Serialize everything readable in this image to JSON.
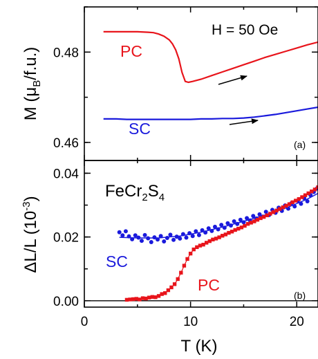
{
  "chart_data": [
    {
      "id": "a",
      "type": "line",
      "panel_tag": "(a)",
      "ylabel_main": "M (μ",
      "ylabel_sub": "B",
      "ylabel_tail": "/f.u.)",
      "xlim": [
        0,
        22
      ],
      "ylim": [
        0.456,
        0.49
      ],
      "yticks": [
        0.46,
        0.48
      ],
      "ytick_labels": [
        "0.46",
        "0.48"
      ],
      "annotation": "H = 50 Oe",
      "series": [
        {
          "name": "PC",
          "color": "#e8141b",
          "x": [
            1.8,
            3,
            4,
            5,
            6,
            6.5,
            7,
            7.5,
            8,
            8.3,
            8.6,
            8.9,
            9.2,
            9.5,
            9.8,
            10.2,
            11,
            12,
            13,
            14,
            15,
            16,
            17,
            18,
            19,
            20,
            21,
            22
          ],
          "y": [
            0.4845,
            0.4845,
            0.4845,
            0.4845,
            0.4844,
            0.4843,
            0.484,
            0.4835,
            0.4827,
            0.4818,
            0.4805,
            0.4785,
            0.4755,
            0.4735,
            0.4733,
            0.4735,
            0.474,
            0.4748,
            0.4756,
            0.4764,
            0.4772,
            0.478,
            0.4788,
            0.4795,
            0.4802,
            0.4809,
            0.4816,
            0.4822
          ]
        },
        {
          "name": "SC",
          "color": "#1a1adc",
          "x": [
            1.8,
            3,
            4,
            5,
            6,
            7,
            8,
            9,
            10,
            11,
            12,
            13,
            14,
            15,
            16,
            17,
            18,
            19,
            20,
            21,
            22
          ],
          "y": [
            0.4652,
            0.4652,
            0.4651,
            0.4651,
            0.4651,
            0.4651,
            0.4651,
            0.4651,
            0.4651,
            0.4652,
            0.4652,
            0.4653,
            0.4653,
            0.4654,
            0.4656,
            0.4659,
            0.4662,
            0.4666,
            0.467,
            0.4674,
            0.4678
          ]
        }
      ]
    },
    {
      "id": "b",
      "type": "scatter",
      "panel_tag": "(b)",
      "ylabel_main": "ΔL/L (10",
      "ylabel_sup": "-3",
      "ylabel_tail": ")",
      "xlabel": "T (K)",
      "xlim": [
        0,
        22
      ],
      "ylim": [
        -0.002,
        0.044
      ],
      "xticks": [
        0,
        10,
        20
      ],
      "xtick_labels": [
        "0",
        "10",
        "20"
      ],
      "yticks": [
        0,
        0.02,
        0.04
      ],
      "ytick_labels": [
        "0.00",
        "0.02",
        "0.04"
      ],
      "compound_main": "FeCr",
      "compound_sub1": "2",
      "compound_mid": "S",
      "compound_sub2": "4",
      "series": [
        {
          "name": "SC",
          "color": "#1a1adc",
          "marker": "circle",
          "x": [
            3.3,
            3.6,
            3.9,
            4.2,
            4.5,
            4.8,
            5.1,
            5.4,
            5.7,
            6.0,
            6.3,
            6.6,
            6.9,
            7.2,
            7.5,
            7.8,
            8.1,
            8.4,
            8.7,
            9.0,
            9.3,
            9.6,
            9.9,
            10.2,
            10.5,
            10.8,
            11.1,
            11.4,
            11.7,
            12.0,
            12.3,
            12.6,
            12.9,
            13.2,
            13.5,
            13.8,
            14.1,
            14.4,
            14.7,
            15.0,
            15.3,
            15.6,
            15.9,
            16.2,
            16.5,
            16.8,
            17.1,
            17.4,
            17.7,
            18.0,
            18.3,
            18.6,
            18.9,
            19.2,
            19.5,
            19.8,
            20.1,
            20.4,
            20.7,
            21.0,
            21.3,
            21.6,
            21.9
          ],
          "y": [
            0.0215,
            0.0205,
            0.0218,
            0.0202,
            0.0193,
            0.0205,
            0.0198,
            0.0188,
            0.0206,
            0.0196,
            0.0184,
            0.0199,
            0.0192,
            0.0203,
            0.0186,
            0.0197,
            0.0207,
            0.0191,
            0.0201,
            0.0195,
            0.0209,
            0.0198,
            0.0212,
            0.0203,
            0.0218,
            0.0206,
            0.0221,
            0.0214,
            0.0227,
            0.0219,
            0.0232,
            0.0224,
            0.0238,
            0.0229,
            0.0243,
            0.0236,
            0.0249,
            0.0241,
            0.0254,
            0.0246,
            0.0259,
            0.0252,
            0.0266,
            0.0258,
            0.0271,
            0.0264,
            0.0279,
            0.0269,
            0.0285,
            0.0276,
            0.0292,
            0.0282,
            0.0299,
            0.0289,
            0.0306,
            0.0296,
            0.0314,
            0.0304,
            0.0322,
            0.0312,
            0.0331,
            0.0341,
            0.0352
          ],
          "fit_x": [
            3.3,
            5,
            7,
            9,
            11,
            13,
            15,
            17,
            19,
            21,
            22
          ],
          "fit_y": [
            0.0199,
            0.0197,
            0.0197,
            0.0203,
            0.0215,
            0.0231,
            0.0249,
            0.0269,
            0.0291,
            0.0319,
            0.0337
          ]
        },
        {
          "name": "PC",
          "color": "#e8141b",
          "marker": "square",
          "x": [
            4.0,
            4.3,
            4.6,
            4.9,
            5.2,
            5.5,
            5.8,
            6.1,
            6.4,
            6.7,
            7.0,
            7.3,
            7.6,
            7.9,
            8.2,
            8.5,
            8.8,
            9.1,
            9.4,
            9.7,
            10.0,
            10.3,
            10.6,
            10.9,
            11.2,
            11.5,
            11.8,
            12.1,
            12.4,
            12.7,
            13.0,
            13.3,
            13.6,
            13.9,
            14.2,
            14.5,
            14.8,
            15.1,
            15.4,
            15.7,
            16.0,
            16.3,
            16.6,
            16.9,
            17.2,
            17.5,
            17.8,
            18.1,
            18.4,
            18.7,
            19.0,
            19.3,
            19.6,
            19.9,
            20.2,
            20.5,
            20.8,
            21.1,
            21.4,
            21.7,
            22.0
          ],
          "y": [
            0.0003,
            0.0004,
            0.0005,
            0.0006,
            0.0004,
            0.0008,
            0.0007,
            0.001,
            0.0012,
            0.0011,
            0.0015,
            0.0021,
            0.0024,
            0.0033,
            0.0042,
            0.0052,
            0.0068,
            0.0088,
            0.011,
            0.0131,
            0.0148,
            0.0161,
            0.0168,
            0.0173,
            0.0176,
            0.0182,
            0.0187,
            0.0192,
            0.0195,
            0.0199,
            0.0204,
            0.0208,
            0.0213,
            0.0217,
            0.0222,
            0.0226,
            0.023,
            0.0235,
            0.0241,
            0.0245,
            0.0249,
            0.0254,
            0.0259,
            0.0263,
            0.0268,
            0.0273,
            0.0278,
            0.0283,
            0.0288,
            0.0293,
            0.0298,
            0.0303,
            0.0309,
            0.0314,
            0.0319,
            0.0325,
            0.0331,
            0.0337,
            0.0343,
            0.0349,
            0.0356
          ]
        }
      ]
    }
  ]
}
